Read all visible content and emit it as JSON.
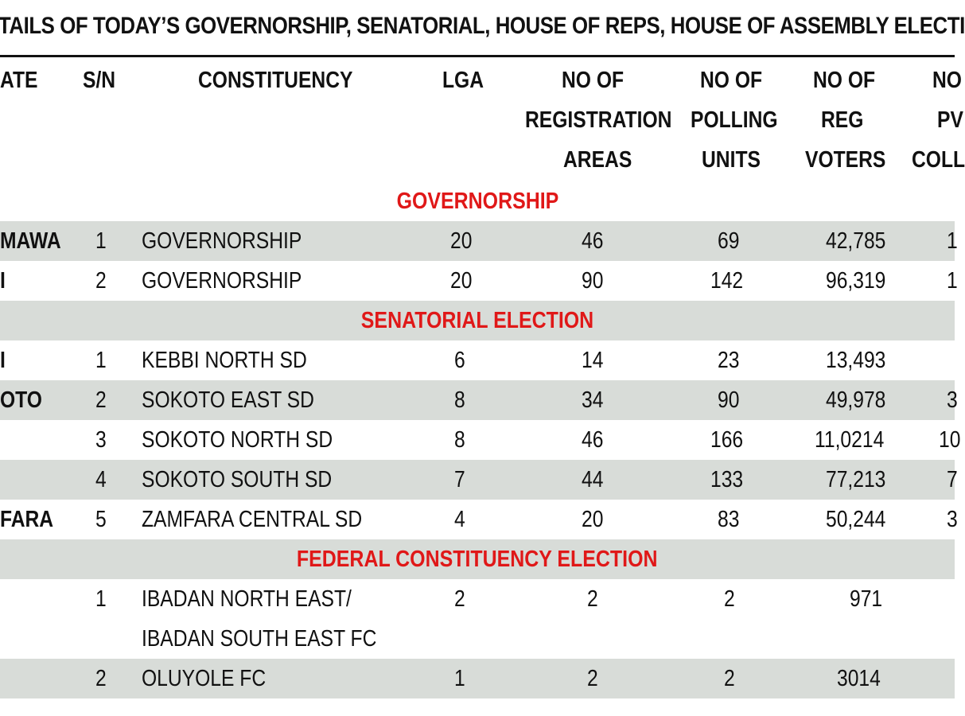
{
  "title": "TAILS OF TODAY’S GOVERNORSHIP, SENATORIAL, HOUSE OF REPS, HOUSE OF ASSEMBLY ELECTI",
  "headers": {
    "state": "ATE",
    "sn": "S/N",
    "constituency": "CONSTITUENCY",
    "lga": "LGA",
    "reg_areas": [
      "NO OF",
      "REGISTRATION",
      "AREAS"
    ],
    "polling_units": [
      "NO OF",
      "POLLING",
      "UNITS"
    ],
    "reg_voters": [
      "NO OF",
      "REG",
      "VOTERS"
    ],
    "pvc": [
      "NO",
      "PV",
      "COLL"
    ]
  },
  "sections": {
    "governorship": "GOVERNORSHIP",
    "senatorial": "SENATORIAL ELECTION",
    "federal": "FEDERAL CONSTITUENCY ELECTION"
  },
  "rows": [
    {
      "state": "MAWA",
      "sn": "1",
      "constituency": "GOVERNORSHIP",
      "lga": "20",
      "areas": "46",
      "units": "69",
      "voters": "42,785",
      "pvc": "1"
    },
    {
      "state": "I",
      "sn": "2",
      "constituency": "GOVERNORSHIP",
      "lga": "20",
      "areas": "90",
      "units": "142",
      "voters": "96,319",
      "pvc": "1"
    },
    {
      "state": "I",
      "sn": "1",
      "constituency": "KEBBI NORTH SD",
      "lga": "6",
      "areas": "14",
      "units": "23",
      "voters": "13,493",
      "pvc": ""
    },
    {
      "state": "OTO",
      "sn": "2",
      "constituency": "SOKOTO EAST SD",
      "lga": "8",
      "areas": "34",
      "units": "90",
      "voters": "49,978",
      "pvc": "3"
    },
    {
      "state": "",
      "sn": "3",
      "constituency": "SOKOTO NORTH SD",
      "lga": "8",
      "areas": "46",
      "units": "166",
      "voters": "11,0214",
      "pvc": "10"
    },
    {
      "state": "",
      "sn": "4",
      "constituency": "SOKOTO SOUTH SD",
      "lga": "7",
      "areas": "44",
      "units": "133",
      "voters": "77,213",
      "pvc": "7"
    },
    {
      "state": "FARA",
      "sn": "5",
      "constituency": "ZAMFARA CENTRAL SD",
      "lga": "4",
      "areas": "20",
      "units": "83",
      "voters": "50,244",
      "pvc": "3"
    },
    {
      "state": "",
      "sn": "1",
      "constituency": "IBADAN NORTH EAST/",
      "constituency2": "IBADAN SOUTH EAST FC",
      "lga": "2",
      "areas": "2",
      "units": "2",
      "voters": "971",
      "pvc": ""
    },
    {
      "state": "",
      "sn": "2",
      "constituency": "OLUYOLE FC",
      "lga": "1",
      "areas": "2",
      "units": "2",
      "voters": "3014",
      "pvc": ""
    }
  ]
}
